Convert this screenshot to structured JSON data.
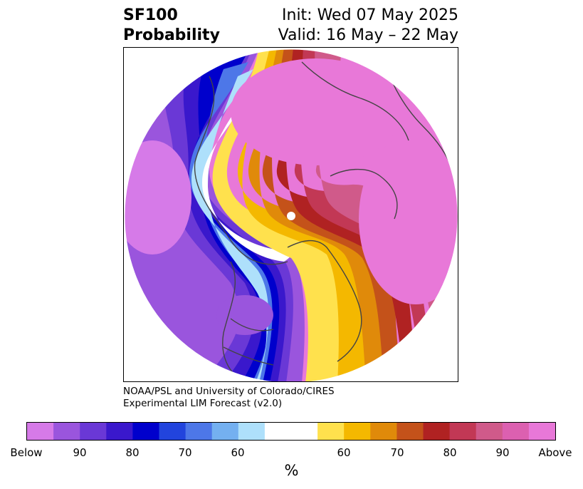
{
  "title": {
    "left_line1": "SF100",
    "left_line2": "Probability",
    "right_line1": "Init: Wed 07 May 2025",
    "right_line2": "Valid: 16 May – 22 May"
  },
  "credit": {
    "line1": "NOAA/PSL and University of Colorado/CIRES",
    "line2": "Experimental LIM Forecast (v2.0)"
  },
  "colorbar": {
    "units_label": "%",
    "tick_labels": [
      "Below",
      "90",
      "80",
      "70",
      "60",
      "60",
      "70",
      "80",
      "90",
      "Above"
    ],
    "below_colors": [
      "#d67ae8",
      "#9a55dd",
      "#6a38d6",
      "#3a18cc",
      "#0000cc",
      "#2244dd",
      "#4d77e8",
      "#74b0f0",
      "#aee0fb"
    ],
    "neutral_color": "#ffffff",
    "above_colors": [
      "#ffe14d",
      "#f4b800",
      "#e08a0a",
      "#c4521a",
      "#b02222",
      "#c23855",
      "#d05a8a",
      "#dc60b0",
      "#e878d8"
    ]
  },
  "map": {
    "projection": "north polar stereographic",
    "background_color": "#ffffff",
    "coastline_color": "#444444",
    "dominant_colors": {
      "high_above": "#e878d8",
      "mid_above": "#c23855",
      "low_above": "#f4b800",
      "near_normal": "#ffffff",
      "low_below": "#74b0f0",
      "mid_below": "#0000cc",
      "high_below": "#9a55dd"
    }
  }
}
